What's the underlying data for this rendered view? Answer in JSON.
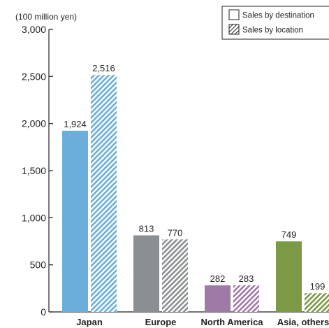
{
  "chart_data": {
    "type": "bar",
    "unit_label": "(100 million yen)",
    "categories": [
      "Japan",
      "Europe",
      "North America",
      "Asia, others"
    ],
    "series": [
      {
        "name": "Sales by destination",
        "values": [
          1924,
          813,
          282,
          749
        ],
        "labels": [
          "1,924",
          "813",
          "282",
          "749"
        ],
        "pattern": "solid"
      },
      {
        "name": "Sales by location",
        "values": [
          2516,
          770,
          283,
          199
        ],
        "labels": [
          "2,516",
          "770",
          "283",
          "199"
        ],
        "pattern": "hatched"
      }
    ],
    "category_colors": [
      "#6aaedc",
      "#8c8f91",
      "#a07aa6",
      "#7b9a45"
    ],
    "ylim": [
      0,
      3000
    ],
    "yticks": [
      0,
      500,
      1000,
      1500,
      2000,
      2500,
      3000
    ],
    "ytick_labels": [
      "0",
      "500",
      "1,000",
      "1,500",
      "2,000",
      "2,500",
      "3,000"
    ],
    "legend_position": "top-right",
    "grid": false
  }
}
